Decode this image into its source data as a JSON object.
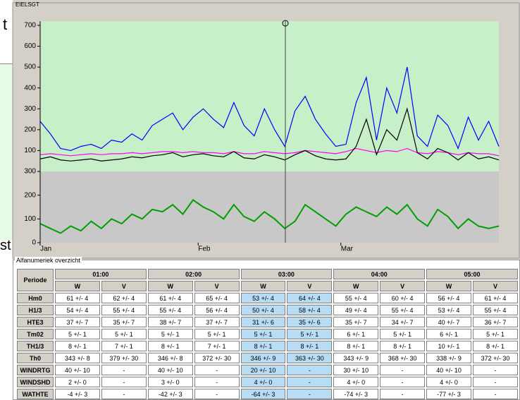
{
  "background_window": {
    "texts": [
      "t",
      "st"
    ]
  },
  "chart_data": [
    {
      "type": "line",
      "title": "EIELSGT",
      "x": [
        0,
        2,
        4,
        6,
        8,
        10,
        12,
        14,
        16,
        18,
        20,
        22,
        24,
        26,
        28,
        30,
        32,
        34,
        36,
        38,
        40,
        42,
        44,
        46,
        48,
        50,
        52,
        54,
        56,
        58,
        60,
        62,
        64,
        66,
        68,
        70,
        72,
        74,
        76,
        78,
        80,
        82,
        84,
        86,
        88,
        90
      ],
      "xlim": [
        0,
        90
      ],
      "ylim": [
        0,
        720
      ],
      "yticks": [
        100,
        200,
        300,
        400,
        500,
        600,
        700
      ],
      "background": "#c8f0c8",
      "series": [
        {
          "color": "#0000ff",
          "values": [
            240,
            180,
            110,
            100,
            120,
            130,
            110,
            150,
            140,
            180,
            150,
            220,
            250,
            280,
            200,
            260,
            300,
            250,
            210,
            330,
            220,
            170,
            300,
            200,
            120,
            290,
            360,
            250,
            180,
            120,
            130,
            330,
            450,
            150,
            400,
            280,
            500,
            170,
            120,
            270,
            220,
            110,
            260,
            150,
            240,
            120
          ]
        },
        {
          "color": "#ff00ff",
          "values": [
            80,
            85,
            80,
            75,
            80,
            85,
            80,
            85,
            85,
            90,
            85,
            90,
            95,
            95,
            90,
            95,
            90,
            90,
            85,
            95,
            85,
            85,
            95,
            90,
            85,
            90,
            100,
            95,
            90,
            85,
            95,
            110,
            100,
            90,
            100,
            95,
            110,
            90,
            85,
            95,
            90,
            80,
            90,
            85,
            85,
            75
          ]
        },
        {
          "color": "#000000",
          "values": [
            60,
            70,
            55,
            50,
            55,
            60,
            50,
            55,
            60,
            70,
            65,
            75,
            80,
            90,
            70,
            80,
            85,
            75,
            70,
            95,
            65,
            60,
            80,
            70,
            55,
            80,
            100,
            75,
            60,
            55,
            60,
            120,
            250,
            80,
            200,
            150,
            300,
            90,
            60,
            110,
            90,
            55,
            90,
            60,
            70,
            55
          ]
        }
      ]
    },
    {
      "type": "line",
      "x": [
        0,
        2,
        4,
        6,
        8,
        10,
        12,
        14,
        16,
        18,
        20,
        22,
        24,
        26,
        28,
        30,
        32,
        34,
        36,
        38,
        40,
        42,
        44,
        46,
        48,
        50,
        52,
        54,
        56,
        58,
        60,
        62,
        64,
        66,
        68,
        70,
        72,
        74,
        76,
        78,
        80,
        82,
        84,
        86,
        88,
        90
      ],
      "xlim": [
        0,
        90
      ],
      "ylim": [
        0,
        300
      ],
      "yticks": [
        0,
        100,
        200,
        300
      ],
      "xticks": [
        {
          "value": 0,
          "label": "Jan"
        },
        {
          "value": 31,
          "label": "Feb"
        },
        {
          "value": 59,
          "label": "Mar"
        }
      ],
      "background": "#c8c8c8",
      "series": [
        {
          "color": "#00a000",
          "values": [
            80,
            60,
            40,
            70,
            50,
            90,
            60,
            100,
            80,
            120,
            100,
            140,
            130,
            160,
            120,
            180,
            150,
            130,
            100,
            160,
            110,
            90,
            130,
            100,
            60,
            90,
            160,
            130,
            100,
            70,
            120,
            150,
            130,
            110,
            150,
            120,
            160,
            100,
            70,
            140,
            110,
            60,
            100,
            70,
            60,
            70
          ]
        }
      ]
    }
  ],
  "table": {
    "title": "Alfanumeriek overzicht",
    "corner": "Periode",
    "periods": [
      "01:00",
      "02:00",
      "03:00",
      "04:00",
      "05:00"
    ],
    "subcolumns": [
      "W",
      "V"
    ],
    "highlight": 2,
    "rows": [
      {
        "label": "Hm0",
        "cells": [
          "61 +/- 4",
          "62 +/- 4",
          "61 +/- 4",
          "65 +/- 4",
          "53 +/- 4",
          "64 +/- 4",
          "55 +/- 4",
          "60 +/- 4",
          "56 +/- 4",
          "61 +/- 4"
        ]
      },
      {
        "label": "H1/3",
        "cells": [
          "54 +/- 4",
          "55 +/- 4",
          "55 +/- 4",
          "56 +/- 4",
          "50 +/- 4",
          "58 +/- 4",
          "49 +/- 4",
          "55 +/- 4",
          "53 +/- 4",
          "55 +/- 4"
        ]
      },
      {
        "label": "HTE3",
        "cells": [
          "37 +/- 7",
          "35 +/- 7",
          "38 +/- 7",
          "37 +/- 7",
          "31 +/- 6",
          "35 +/- 6",
          "35 +/- 7",
          "34 +/- 7",
          "40 +/- 7",
          "36 +/- 7"
        ]
      },
      {
        "label": "Tm02",
        "cells": [
          "5 +/- 1",
          "5 +/- 1",
          "5 +/- 1",
          "5 +/- 1",
          "5 +/- 1",
          "5 +/- 1",
          "6 +/- 1",
          "5 +/- 1",
          "6 +/- 1",
          "5 +/- 1"
        ]
      },
      {
        "label": "TH1/3",
        "cells": [
          "8 +/- 1",
          "7 +/- 1",
          "8 +/- 1",
          "7 +/- 1",
          "8 +/- 1",
          "8 +/- 1",
          "8 +/- 1",
          "8 +/- 1",
          "10 +/- 1",
          "8 +/- 1"
        ]
      },
      {
        "label": "Th0",
        "cells": [
          "343 +/- 8",
          "379 +/- 30",
          "346 +/- 8",
          "372 +/- 30",
          "346 +/- 9",
          "363 +/- 30",
          "343 +/- 9",
          "368 +/- 30",
          "338 +/- 9",
          "372 +/- 30"
        ]
      },
      {
        "label": "WINDRTG",
        "cells": [
          "40 +/- 10",
          "-",
          "40 +/- 10",
          "-",
          "20 +/- 10",
          "-",
          "30 +/- 10",
          "-",
          "40 +/- 10",
          "-"
        ]
      },
      {
        "label": "WINDSHD",
        "cells": [
          "2 +/- 0",
          "-",
          "3 +/- 0",
          "-",
          "4 +/- 0",
          "-",
          "4 +/- 0",
          "-",
          "4 +/- 0",
          "-"
        ]
      },
      {
        "label": "WATHTE",
        "cells": [
          "-4 +/- 3",
          "-",
          "-42 +/- 3",
          "-",
          "-64 +/- 3",
          "-",
          "-74 +/- 3",
          "-",
          "-77 +/- 3",
          "-"
        ]
      }
    ]
  }
}
